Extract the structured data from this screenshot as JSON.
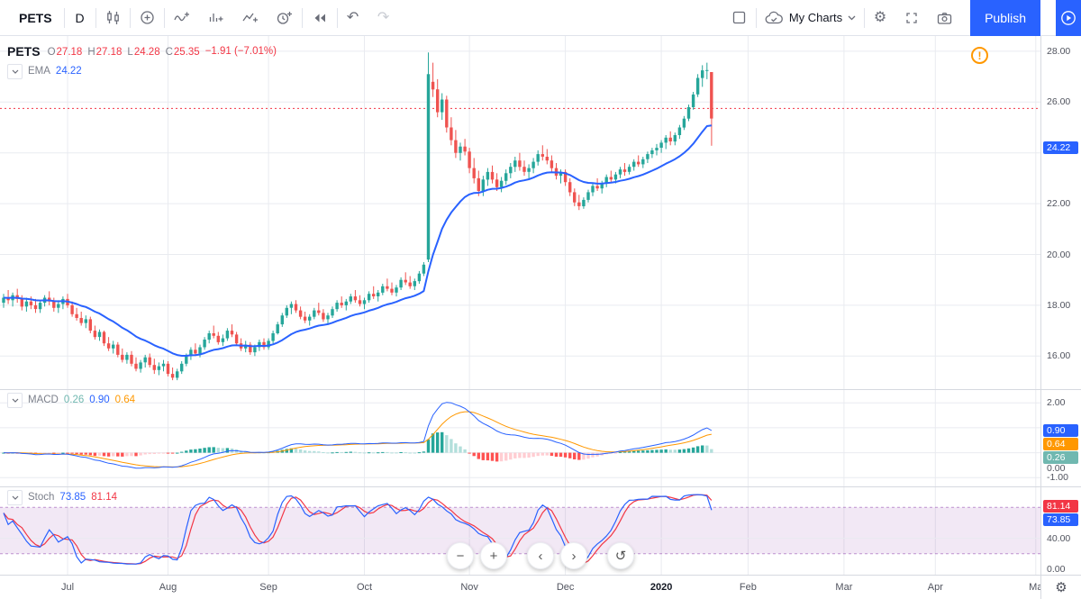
{
  "toolbar": {
    "symbol": "PETS",
    "interval": "D",
    "my_charts_label": "My Charts",
    "publish_label": "Publish"
  },
  "legend": {
    "symbol": "PETS",
    "o_label": "O",
    "o": "27.18",
    "h_label": "H",
    "h": "27.18",
    "l_label": "L",
    "l": "24.28",
    "c_label": "C",
    "c": "25.35",
    "change": "−1.91 (−7.01%)",
    "ema_label": "EMA",
    "ema_value": "24.22"
  },
  "macd": {
    "label": "MACD",
    "hist_value": "0.26",
    "macd_value": "0.90",
    "signal_value": "0.64"
  },
  "stoch": {
    "label": "Stoch",
    "k_value": "73.85",
    "d_value": "81.14"
  },
  "scales": {
    "price": {
      "ticks": [
        {
          "v": 28,
          "t": "28.00"
        },
        {
          "v": 26,
          "t": "26.00"
        },
        {
          "v": 22,
          "t": "22.00"
        },
        {
          "v": 20,
          "t": "20.00"
        },
        {
          "v": 18,
          "t": "18.00"
        },
        {
          "v": 16,
          "t": "16.00"
        }
      ],
      "grid": [
        16,
        18,
        20,
        22,
        24,
        26,
        28
      ],
      "badges": [
        {
          "v": 24.22,
          "t": "24.22",
          "c": "#2962ff"
        }
      ],
      "price_line": 25.75
    },
    "macd": {
      "ticks": [
        {
          "v": 2,
          "t": "2.00"
        },
        {
          "v": 0,
          "t": "0.00",
          "dy": 17
        },
        {
          "v": -1,
          "t": "-1.00"
        }
      ],
      "grid": [
        2,
        1,
        0,
        -1
      ],
      "badges": [
        {
          "v": 0.9,
          "t": "0.90",
          "c": "#2962ff"
        },
        {
          "v": 0.64,
          "t": "0.64",
          "c": "#ff9800"
        },
        {
          "v": 0.26,
          "t": "0.26",
          "c": "#70b8b0"
        }
      ]
    },
    "stoch": {
      "ticks": [
        {
          "v": 40,
          "t": "40.00"
        },
        {
          "v": 0,
          "t": "0.00"
        }
      ],
      "grid": [
        40
      ],
      "badges": [
        {
          "v": 81.14,
          "t": "81.14",
          "c": "#f23645"
        },
        {
          "v": 73.85,
          "t": "73.85",
          "c": "#2962ff"
        }
      ],
      "band": [
        20,
        80
      ]
    }
  },
  "axis": {
    "months": [
      {
        "label": "Jul",
        "i": 14
      },
      {
        "label": "Aug",
        "i": 36
      },
      {
        "label": "Sep",
        "i": 58
      },
      {
        "label": "Oct",
        "i": 79
      },
      {
        "label": "Nov",
        "i": 102
      },
      {
        "label": "Dec",
        "i": 123
      },
      {
        "label": "2020",
        "i": 144,
        "major": true
      },
      {
        "label": "Feb",
        "i": 163
      },
      {
        "label": "Mar",
        "i": 184
      },
      {
        "label": "Apr",
        "i": 204
      },
      {
        "label": "Ma",
        "i": 226
      }
    ]
  },
  "colors": {
    "accent": "#2962ff",
    "up": "#26a69a",
    "down": "#ef5350",
    "ema": "#2962ff",
    "macd_line": "#2962ff",
    "signal_line": "#ff9800",
    "hist_up": "#26a69a",
    "hist_up_light": "#b2dfdb",
    "hist_down": "#ff5252",
    "hist_down_light": "#ffcdd2",
    "stoch_k": "#2962ff",
    "stoch_d": "#f23645",
    "band_fill": "rgba(144,66,173,0.12)",
    "band_line": "rgba(144,66,173,0.55)",
    "grid": "#e9ebf0",
    "price_line": "#f23645"
  },
  "chart_data": {
    "type": "candlestick",
    "symbol": "PETS",
    "interval": "D",
    "title": "PETS daily chart with EMA, MACD and Stochastic",
    "last": {
      "open": 27.18,
      "high": 27.18,
      "low": 24.28,
      "close": 25.35,
      "change": -1.91,
      "change_pct": -7.01
    },
    "ema_period": 21,
    "ema_last": 24.22,
    "macd_params": {
      "fast": 12,
      "slow": 26,
      "signal": 9,
      "last_hist": 0.26,
      "last_macd": 0.9,
      "last_signal": 0.64,
      "ylim": [
        -1.35,
        2.55
      ]
    },
    "stoch_params": {
      "k": 14,
      "smooth": 3,
      "d": 3,
      "last_k": 73.85,
      "last_d": 81.14,
      "band": [
        20,
        80
      ],
      "ylim": [
        0,
        100
      ]
    },
    "price_range": [
      14.7,
      28.6
    ],
    "x_months_visible": [
      "Jul",
      "Aug",
      "Sep",
      "Oct",
      "Nov",
      "Dec",
      "2020",
      "Feb",
      "Mar",
      "Apr",
      "May"
    ],
    "candles": [
      [
        18.1,
        18.45,
        17.9,
        18.3
      ],
      [
        18.3,
        18.6,
        18.05,
        18.2
      ],
      [
        18.2,
        18.5,
        17.95,
        18.4
      ],
      [
        18.4,
        18.65,
        18.1,
        18.25
      ],
      [
        18.25,
        18.4,
        17.8,
        17.95
      ],
      [
        17.95,
        18.3,
        17.75,
        18.15
      ],
      [
        18.15,
        18.35,
        17.85,
        18.0
      ],
      [
        18.0,
        18.25,
        17.7,
        17.85
      ],
      [
        17.85,
        18.2,
        17.7,
        18.1
      ],
      [
        18.1,
        18.4,
        17.95,
        18.3
      ],
      [
        18.3,
        18.55,
        18.0,
        18.15
      ],
      [
        18.15,
        18.3,
        17.75,
        17.9
      ],
      [
        17.9,
        18.2,
        17.7,
        18.05
      ],
      [
        18.05,
        18.35,
        17.85,
        18.25
      ],
      [
        18.25,
        18.45,
        17.9,
        18.0
      ],
      [
        18.0,
        18.15,
        17.55,
        17.65
      ],
      [
        17.65,
        17.9,
        17.4,
        17.5
      ],
      [
        17.5,
        17.75,
        17.2,
        17.3
      ],
      [
        17.3,
        17.6,
        17.1,
        17.45
      ],
      [
        17.45,
        17.55,
        16.9,
        17.0
      ],
      [
        17.0,
        17.2,
        16.65,
        16.75
      ],
      [
        16.75,
        17.05,
        16.6,
        16.95
      ],
      [
        16.95,
        17.0,
        16.4,
        16.5
      ],
      [
        16.5,
        16.75,
        16.2,
        16.3
      ],
      [
        16.3,
        16.6,
        16.1,
        16.45
      ],
      [
        16.45,
        16.55,
        15.95,
        16.05
      ],
      [
        16.05,
        16.3,
        15.75,
        15.85
      ],
      [
        15.85,
        16.15,
        15.7,
        16.05
      ],
      [
        16.05,
        16.2,
        15.6,
        15.7
      ],
      [
        15.7,
        15.95,
        15.4,
        15.5
      ],
      [
        15.5,
        15.85,
        15.35,
        15.75
      ],
      [
        15.75,
        16.05,
        15.55,
        15.95
      ],
      [
        15.95,
        16.1,
        15.55,
        15.65
      ],
      [
        15.65,
        15.9,
        15.3,
        15.45
      ],
      [
        15.45,
        15.75,
        15.25,
        15.6
      ],
      [
        15.6,
        15.85,
        15.4,
        15.7
      ],
      [
        15.7,
        15.8,
        15.2,
        15.3
      ],
      [
        15.3,
        15.55,
        15.05,
        15.15
      ],
      [
        15.15,
        15.5,
        15.05,
        15.4
      ],
      [
        15.4,
        15.8,
        15.3,
        15.7
      ],
      [
        15.7,
        16.1,
        15.6,
        16.0
      ],
      [
        16.0,
        16.35,
        15.85,
        16.25
      ],
      [
        16.25,
        16.5,
        16.0,
        16.1
      ],
      [
        16.1,
        16.45,
        15.95,
        16.35
      ],
      [
        16.35,
        16.75,
        16.25,
        16.65
      ],
      [
        16.65,
        17.0,
        16.5,
        16.9
      ],
      [
        16.9,
        17.2,
        16.7,
        16.8
      ],
      [
        16.8,
        16.95,
        16.45,
        16.55
      ],
      [
        16.55,
        16.85,
        16.4,
        16.7
      ],
      [
        16.7,
        17.1,
        16.6,
        17.0
      ],
      [
        17.0,
        17.25,
        16.75,
        16.85
      ],
      [
        16.85,
        16.95,
        16.4,
        16.5
      ],
      [
        16.5,
        16.7,
        16.2,
        16.3
      ],
      [
        16.3,
        16.6,
        16.15,
        16.45
      ],
      [
        16.45,
        16.55,
        16.05,
        16.15
      ],
      [
        16.15,
        16.45,
        16.0,
        16.35
      ],
      [
        16.35,
        16.65,
        16.2,
        16.55
      ],
      [
        16.55,
        16.7,
        16.25,
        16.35
      ],
      [
        16.35,
        16.7,
        16.25,
        16.6
      ],
      [
        16.6,
        17.0,
        16.5,
        16.9
      ],
      [
        16.9,
        17.35,
        16.85,
        17.25
      ],
      [
        17.25,
        17.7,
        17.15,
        17.6
      ],
      [
        17.6,
        18.0,
        17.5,
        17.9
      ],
      [
        17.9,
        18.15,
        17.65,
        18.05
      ],
      [
        18.05,
        18.2,
        17.7,
        17.8
      ],
      [
        17.8,
        17.95,
        17.45,
        17.55
      ],
      [
        17.55,
        17.75,
        17.3,
        17.4
      ],
      [
        17.4,
        17.65,
        17.2,
        17.55
      ],
      [
        17.55,
        17.9,
        17.45,
        17.8
      ],
      [
        17.8,
        18.1,
        17.6,
        17.7
      ],
      [
        17.7,
        17.85,
        17.35,
        17.45
      ],
      [
        17.45,
        17.7,
        17.25,
        17.6
      ],
      [
        17.6,
        17.95,
        17.5,
        17.85
      ],
      [
        17.85,
        18.2,
        17.75,
        18.1
      ],
      [
        18.1,
        18.35,
        17.9,
        18.0
      ],
      [
        18.0,
        18.25,
        17.8,
        18.15
      ],
      [
        18.15,
        18.45,
        18.05,
        18.35
      ],
      [
        18.35,
        18.6,
        18.1,
        18.2
      ],
      [
        18.2,
        18.4,
        17.95,
        18.05
      ],
      [
        18.05,
        18.3,
        17.85,
        18.2
      ],
      [
        18.2,
        18.55,
        18.1,
        18.45
      ],
      [
        18.45,
        18.75,
        18.25,
        18.35
      ],
      [
        18.35,
        18.6,
        18.15,
        18.5
      ],
      [
        18.5,
        18.85,
        18.4,
        18.75
      ],
      [
        18.75,
        19.05,
        18.55,
        18.65
      ],
      [
        18.65,
        18.9,
        18.4,
        18.5
      ],
      [
        18.5,
        18.8,
        18.35,
        18.7
      ],
      [
        18.7,
        19.1,
        18.6,
        19.0
      ],
      [
        19.0,
        19.3,
        18.8,
        18.9
      ],
      [
        18.9,
        19.15,
        18.65,
        18.75
      ],
      [
        18.75,
        19.05,
        18.6,
        18.95
      ],
      [
        18.95,
        19.35,
        18.85,
        19.25
      ],
      [
        19.25,
        19.7,
        19.15,
        19.6
      ],
      [
        19.8,
        27.95,
        19.7,
        27.1
      ],
      [
        26.8,
        27.55,
        26.2,
        26.5
      ],
      [
        26.5,
        26.9,
        25.4,
        25.6
      ],
      [
        25.6,
        26.35,
        25.3,
        26.1
      ],
      [
        26.1,
        26.25,
        24.8,
        25.0
      ],
      [
        25.0,
        25.4,
        24.3,
        24.5
      ],
      [
        24.5,
        24.9,
        23.8,
        24.0
      ],
      [
        24.0,
        24.4,
        23.7,
        24.25
      ],
      [
        24.25,
        24.55,
        23.9,
        24.05
      ],
      [
        24.05,
        24.2,
        23.2,
        23.4
      ],
      [
        23.4,
        23.8,
        22.8,
        23.0
      ],
      [
        23.0,
        23.3,
        22.3,
        22.5
      ],
      [
        22.5,
        23.1,
        22.3,
        22.95
      ],
      [
        22.95,
        23.4,
        22.7,
        23.25
      ],
      [
        23.25,
        23.5,
        22.8,
        22.95
      ],
      [
        22.95,
        23.2,
        22.5,
        22.65
      ],
      [
        22.65,
        23.05,
        22.45,
        22.9
      ],
      [
        22.9,
        23.35,
        22.75,
        23.2
      ],
      [
        23.2,
        23.6,
        23.0,
        23.45
      ],
      [
        23.45,
        23.85,
        23.25,
        23.7
      ],
      [
        23.7,
        24.0,
        23.3,
        23.45
      ],
      [
        23.45,
        23.7,
        23.1,
        23.25
      ],
      [
        23.25,
        23.55,
        23.0,
        23.4
      ],
      [
        23.4,
        23.8,
        23.2,
        23.65
      ],
      [
        23.65,
        24.1,
        23.5,
        23.95
      ],
      [
        23.95,
        24.3,
        23.7,
        23.85
      ],
      [
        23.85,
        24.15,
        23.55,
        23.7
      ],
      [
        23.7,
        23.9,
        23.25,
        23.4
      ],
      [
        23.4,
        23.6,
        22.95,
        23.1
      ],
      [
        23.1,
        23.35,
        22.8,
        23.25
      ],
      [
        23.25,
        23.35,
        22.7,
        22.85
      ],
      [
        22.85,
        23.0,
        22.3,
        22.45
      ],
      [
        22.45,
        22.6,
        21.9,
        22.05
      ],
      [
        22.05,
        22.35,
        21.75,
        21.9
      ],
      [
        21.9,
        22.25,
        21.8,
        22.15
      ],
      [
        22.15,
        22.55,
        22.05,
        22.45
      ],
      [
        22.45,
        22.8,
        22.3,
        22.7
      ],
      [
        22.7,
        23.0,
        22.5,
        22.6
      ],
      [
        22.6,
        22.9,
        22.4,
        22.8
      ],
      [
        22.8,
        23.15,
        22.65,
        23.05
      ],
      [
        23.05,
        23.3,
        22.85,
        22.95
      ],
      [
        22.95,
        23.25,
        22.8,
        23.15
      ],
      [
        23.15,
        23.45,
        23.0,
        23.35
      ],
      [
        23.35,
        23.6,
        23.1,
        23.25
      ],
      [
        23.25,
        23.55,
        23.15,
        23.45
      ],
      [
        23.45,
        23.75,
        23.3,
        23.65
      ],
      [
        23.65,
        23.9,
        23.45,
        23.55
      ],
      [
        23.55,
        23.85,
        23.4,
        23.75
      ],
      [
        23.75,
        24.05,
        23.6,
        23.95
      ],
      [
        23.95,
        24.2,
        23.8,
        24.1
      ],
      [
        24.1,
        24.35,
        23.9,
        24.2
      ],
      [
        24.2,
        24.5,
        24.0,
        24.4
      ],
      [
        24.4,
        24.7,
        24.15,
        24.6
      ],
      [
        24.6,
        24.85,
        24.3,
        24.45
      ],
      [
        24.45,
        24.8,
        24.3,
        24.7
      ],
      [
        24.7,
        25.1,
        24.55,
        25.0
      ],
      [
        25.0,
        25.45,
        24.9,
        25.35
      ],
      [
        25.35,
        25.9,
        25.25,
        25.8
      ],
      [
        25.8,
        26.4,
        25.7,
        26.3
      ],
      [
        26.3,
        27.1,
        26.2,
        26.95
      ],
      [
        26.95,
        27.45,
        26.6,
        27.25
      ],
      [
        27.25,
        27.55,
        26.9,
        27.26
      ],
      [
        27.18,
        27.18,
        24.28,
        25.35
      ]
    ]
  }
}
